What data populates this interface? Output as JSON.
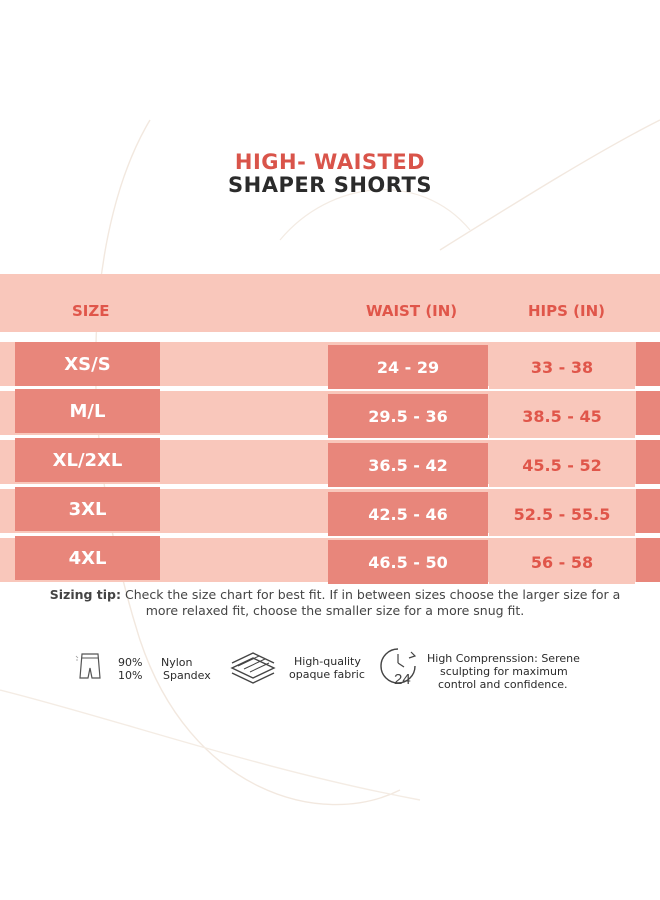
{
  "title": {
    "line1": "HIGH- WAISTED",
    "line2": "SHAPER SHORTS"
  },
  "colors": {
    "accent": "#e0564a",
    "band": "#f9c7bb",
    "cell": "#e8867b",
    "text": "#2b2b2b"
  },
  "table": {
    "headers": {
      "size": "SIZE",
      "waist": "WAIST (IN)",
      "hips": "HIPS (IN)"
    },
    "rows": [
      {
        "size": "XS/S",
        "waist": "24 - 29",
        "hips": "33 - 38"
      },
      {
        "size": "M/L",
        "waist": "29.5 - 36",
        "hips": "38.5 - 45"
      },
      {
        "size": "XL/2XL",
        "waist": "36.5 - 42",
        "hips": "45.5 - 52"
      },
      {
        "size": "3XL",
        "waist": "42.5 - 46",
        "hips": "52.5 - 55.5"
      },
      {
        "size": "4XL",
        "waist": "46.5 - 50",
        "hips": "56 - 58"
      }
    ]
  },
  "tip": {
    "label": "Sizing tip:",
    "text": "Check the size chart for best fit. If in between sizes choose the larger size for a more relaxed fit, choose the smaller size for a more snug fit."
  },
  "features": {
    "material": {
      "icon": "shorts-icon",
      "percent1": "90%",
      "name1": "Nylon",
      "percent2": "10%",
      "name2": "Spandex"
    },
    "fabric": {
      "icon": "fabric-layers-icon",
      "line1": "High-quality",
      "line2": "opaque fabric"
    },
    "compression": {
      "icon": "clock-24-icon",
      "icon_text": "24",
      "line1": "High Comprenssion: Serene",
      "line2": "sculpting for maximum",
      "line3": "control and confidence."
    }
  }
}
